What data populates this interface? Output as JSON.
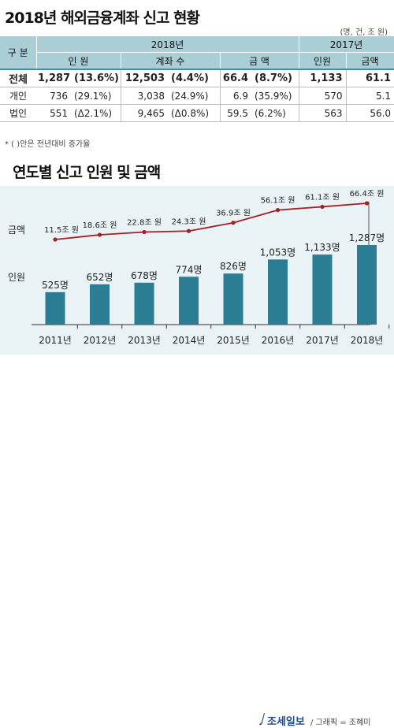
{
  "title": "2018년 해외금융계좌 신고 현황",
  "unit_note": "(명, 건, 조 원)",
  "table": {
    "header_category": "구 분",
    "year_2018": "2018년",
    "year_2017": "2017년",
    "col_people": "인 원",
    "col_accounts": "계좌 수",
    "col_amount": "금 액",
    "col_people_2017": "인원",
    "col_amount_2017": "금액",
    "rows": [
      {
        "label": "전체",
        "people": "1,287",
        "people_chg": "(13.6%)",
        "accounts": "12,503",
        "accounts_chg": "(4.4%)",
        "amount": "66.4",
        "amount_chg": "(8.7%)",
        "people_2017": "1,133",
        "amount_2017": "61.1"
      },
      {
        "label": "개인",
        "people": "736",
        "people_chg": "(29.1%)",
        "accounts": "3,038",
        "accounts_chg": "(24.9%)",
        "amount": "6.9",
        "amount_chg": "(35.9%)",
        "people_2017": "570",
        "amount_2017": "5.1"
      },
      {
        "label": "법인",
        "people": "551",
        "people_chg": "(Δ2.1%)",
        "accounts": "9,465",
        "accounts_chg": "(Δ0.8%)",
        "amount": "59.5",
        "amount_chg": "(6.2%)",
        "people_2017": "563",
        "amount_2017": "56.0"
      }
    ]
  },
  "footnote": "* ( )안은 전년대비 증가율",
  "chart_title": "연도별 신고 인원 및 금액",
  "footer": {
    "logo": "조세일보",
    "credit": "/ 그래픽 = 조혜미"
  },
  "colors": {
    "bar": "#2b7d93",
    "line": "#a51f24",
    "header": "#a9ced6",
    "chart_bg": "#e9f2f5"
  },
  "chart_data": {
    "type": "bar",
    "categories": [
      "2011년",
      "2012년",
      "2013년",
      "2014년",
      "2015년",
      "2016년",
      "2017년",
      "2018년"
    ],
    "series": [
      {
        "name": "인원",
        "type": "bar",
        "values": [
          525,
          652,
          678,
          774,
          826,
          1053,
          1133,
          1287
        ],
        "labels": [
          "525명",
          "652명",
          "678명",
          "774명",
          "826명",
          "1,053명",
          "1,133명",
          "1,287명"
        ]
      },
      {
        "name": "금액",
        "type": "line",
        "values": [
          11.5,
          18.6,
          22.8,
          24.3,
          36.9,
          56.1,
          61.1,
          66.4
        ],
        "labels": [
          "11.5조 원",
          "18.6조 원",
          "22.8조 원",
          "24.3조 원",
          "36.9조 원",
          "56.1조 원",
          "61.1조 원",
          "66.4조 원"
        ]
      }
    ],
    "title": "연도별 신고 인원 및 금액",
    "xlabel": "",
    "ylabel": ""
  }
}
